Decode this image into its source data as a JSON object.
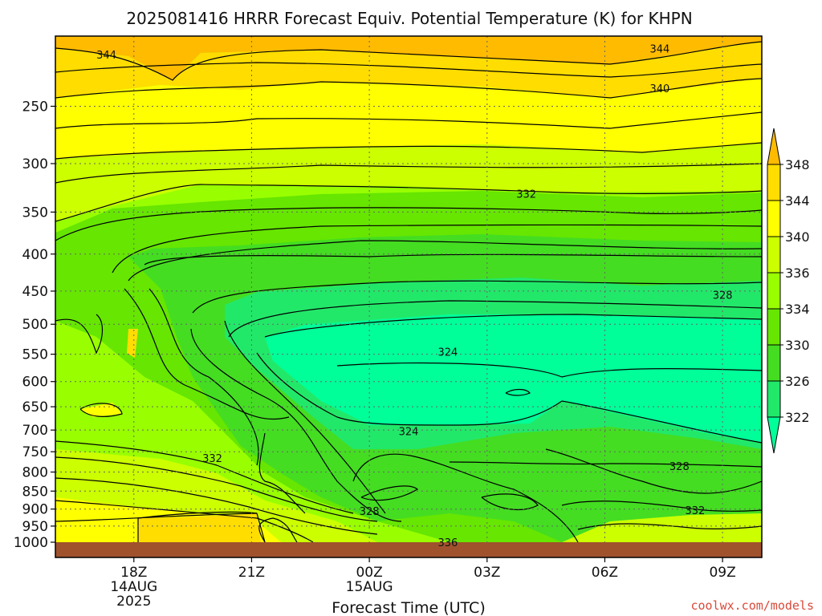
{
  "chart_data": {
    "type": "heatmap",
    "title": "2025081416 HRRR Forecast Equiv. Potential Temperature (K) for KHPN",
    "xlabel": "Forecast Time (UTC)",
    "ylabel": "",
    "x_ticks": [
      {
        "hour": 2,
        "label": "18Z",
        "sub": [
          "14AUG",
          "2025"
        ]
      },
      {
        "hour": 5,
        "label": "21Z",
        "sub": []
      },
      {
        "hour": 8,
        "label": "00Z",
        "sub": [
          "15AUG"
        ]
      },
      {
        "hour": 11,
        "label": "03Z",
        "sub": []
      },
      {
        "hour": 14,
        "label": "06Z",
        "sub": []
      },
      {
        "hour": 17,
        "label": "09Z",
        "sub": []
      }
    ],
    "xlim": [
      0,
      18
    ],
    "y_ticks": [
      250,
      300,
      350,
      400,
      450,
      500,
      550,
      600,
      650,
      700,
      750,
      800,
      850,
      900,
      950,
      1000
    ],
    "ylim_hpa": [
      1000,
      200
    ],
    "ground_color": "#a0522d",
    "colorbar": {
      "levels": [
        322,
        326,
        330,
        334,
        336,
        340,
        344,
        348
      ],
      "colors": [
        "#00ff99",
        "#22e86a",
        "#44dd22",
        "#66e600",
        "#99ff00",
        "#ccff00",
        "#ffff00",
        "#ffdd00",
        "#ffbb00"
      ],
      "extend": "both"
    },
    "contour_labels": [
      {
        "text": "344",
        "hour": 1.3,
        "hpa": 212
      },
      {
        "text": "344",
        "hour": 15.4,
        "hpa": 208
      },
      {
        "text": "340",
        "hour": 15.4,
        "hpa": 236
      },
      {
        "text": "332",
        "hour": 12.0,
        "hpa": 330
      },
      {
        "text": "328",
        "hour": 17.0,
        "hpa": 455
      },
      {
        "text": "324",
        "hour": 10.0,
        "hpa": 546
      },
      {
        "text": "324",
        "hour": 9.0,
        "hpa": 702
      },
      {
        "text": "332",
        "hour": 4.0,
        "hpa": 765
      },
      {
        "text": "328",
        "hour": 15.9,
        "hpa": 785
      },
      {
        "text": "328",
        "hour": 8.0,
        "hpa": 905
      },
      {
        "text": "332",
        "hour": 16.3,
        "hpa": 903
      },
      {
        "text": "336",
        "hour": 10.0,
        "hpa": 1000
      }
    ],
    "grid": true
  },
  "credit": "coolwx.com/models"
}
